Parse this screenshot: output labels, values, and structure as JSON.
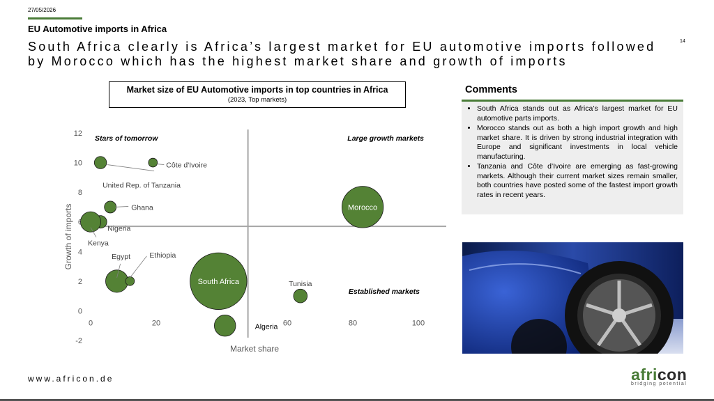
{
  "header": {
    "date": "27/05/2026",
    "section_title": "EU Automotive imports in Africa",
    "headline": "South Africa clearly is Africa’s largest market for EU automotive imports followed by Morocco which has the highest market share and growth of imports",
    "page_number": "14"
  },
  "chart_data": {
    "type": "scatter",
    "title": "Market size of EU Automotive imports in top countries in Africa",
    "subtitle": "(2023, Top markets)",
    "xlabel": "Market share",
    "ylabel": "Growth of imports",
    "xlim": [
      0,
      100
    ],
    "ylim": [
      -2,
      12
    ],
    "x_ticks": [
      0,
      20,
      40,
      60,
      80,
      100
    ],
    "y_ticks": [
      -2,
      0,
      2,
      4,
      6,
      8,
      10,
      12
    ],
    "divider_x": 48,
    "divider_y": 5.7,
    "grid": false,
    "bubble_color": "#548235",
    "quadrant_labels": [
      "Stars of tomorrow",
      "Large growth markets",
      "Established markets"
    ],
    "points": [
      {
        "label": "Côte d'Ivoire",
        "x": 19,
        "y": 10,
        "size": 0.5
      },
      {
        "label": "United Rep. of Tanzania",
        "x": 3,
        "y": 10,
        "size": 1.2
      },
      {
        "label": "Ghana",
        "x": 6,
        "y": 7,
        "size": 1.1
      },
      {
        "label": "Nigeria",
        "x": 3,
        "y": 6,
        "size": 1.3
      },
      {
        "label": "Kenya",
        "x": 0,
        "y": 6,
        "size": 4.1
      },
      {
        "label": "Egypt",
        "x": 8,
        "y": 2,
        "size": 5.2
      },
      {
        "label": "Ethiopia",
        "x": 12,
        "y": 2,
        "size": 0.5
      },
      {
        "label": "South Africa",
        "x": 39,
        "y": 2,
        "size": 39
      },
      {
        "label": "Algeria",
        "x": 41,
        "y": -1,
        "size": 4.6
      },
      {
        "label": "Tunisia",
        "x": 64,
        "y": 1,
        "size": 1.6
      },
      {
        "label": "Morocco",
        "x": 83,
        "y": 7,
        "size": 20
      }
    ]
  },
  "comments": {
    "title": "Comments",
    "items": [
      "South Africa stands out as Africa’s largest market for EU automotive parts imports.",
      "Morocco stands out as both a high import growth and high market share. It is driven by strong industrial integration with Europe and significant investments in local vehicle manufacturing.",
      "Tanzania and Côte d’Ivoire are emerging as fast-growing markets. Although their current market sizes remain smaller, both countries have posted some of the fastest import growth rates in recent years."
    ]
  },
  "footer": {
    "url": "www.africon.de",
    "logo_word_green": "afri",
    "logo_word_dark": "con",
    "logo_tagline": "bridging potential"
  },
  "colors": {
    "accent": "#4a7c38",
    "comments_bg": "#eeeeee"
  }
}
